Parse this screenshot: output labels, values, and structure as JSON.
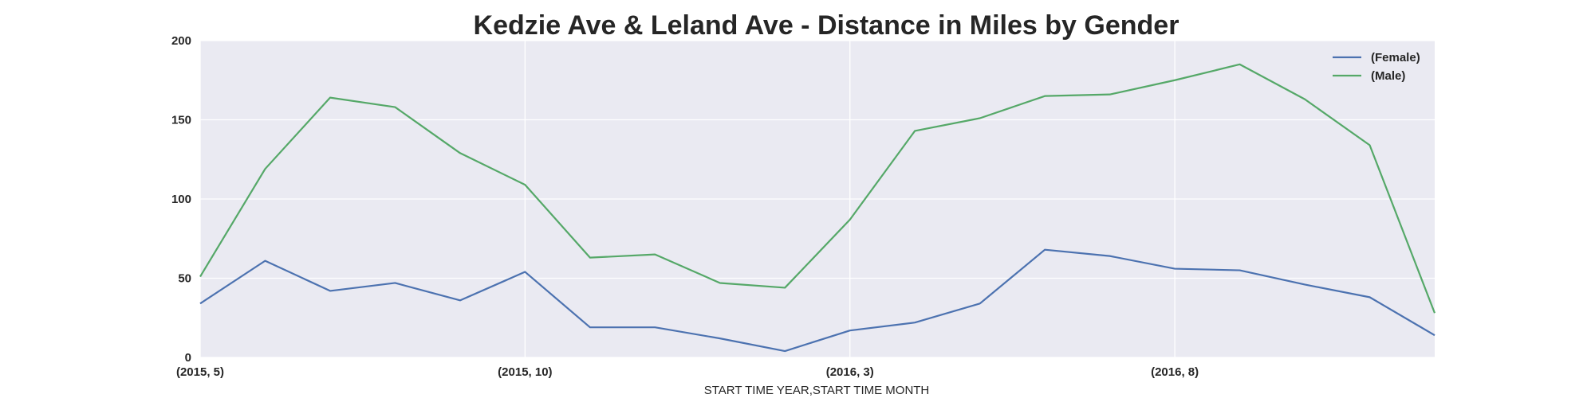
{
  "chart_data": {
    "type": "line",
    "title": "Kedzie Ave & Leland Ave - Distance in Miles by Gender",
    "xlabel": "START TIME YEAR,START TIME MONTH",
    "ylabel": "",
    "x": [
      "(2015, 5)",
      "(2015, 6)",
      "(2015, 7)",
      "(2015, 8)",
      "(2015, 9)",
      "(2015, 10)",
      "(2015, 11)",
      "(2015, 12)",
      "(2016, 1)",
      "(2016, 2)",
      "(2016, 3)",
      "(2016, 4)",
      "(2016, 5)",
      "(2016, 6)",
      "(2016, 7)",
      "(2016, 8)",
      "(2016, 9)",
      "(2016, 10)",
      "(2016, 11)",
      "(2016, 12)"
    ],
    "x_tick_labels": [
      "(2015, 5)",
      "(2015, 10)",
      "(2016, 3)",
      "(2016, 8)"
    ],
    "x_tick_indices": [
      0,
      5,
      10,
      15
    ],
    "ylim": [
      0,
      200
    ],
    "y_ticks": [
      0,
      50,
      100,
      150,
      200
    ],
    "grid": true,
    "legend_position": "top-right",
    "series": [
      {
        "name": "(Female)",
        "color": "#4c72b0",
        "values": [
          34,
          61,
          42,
          47,
          36,
          54,
          19,
          19,
          12,
          4,
          17,
          22,
          34,
          68,
          64,
          56,
          55,
          46,
          38,
          14
        ]
      },
      {
        "name": "(Male)",
        "color": "#55a868",
        "values": [
          51,
          119,
          164,
          158,
          129,
          109,
          63,
          65,
          47,
          44,
          87,
          143,
          151,
          165,
          166,
          175,
          185,
          163,
          134,
          28
        ]
      }
    ],
    "colors": {
      "plot_background": "#eaeaf2",
      "grid": "#ffffff",
      "text": "#262626"
    }
  }
}
